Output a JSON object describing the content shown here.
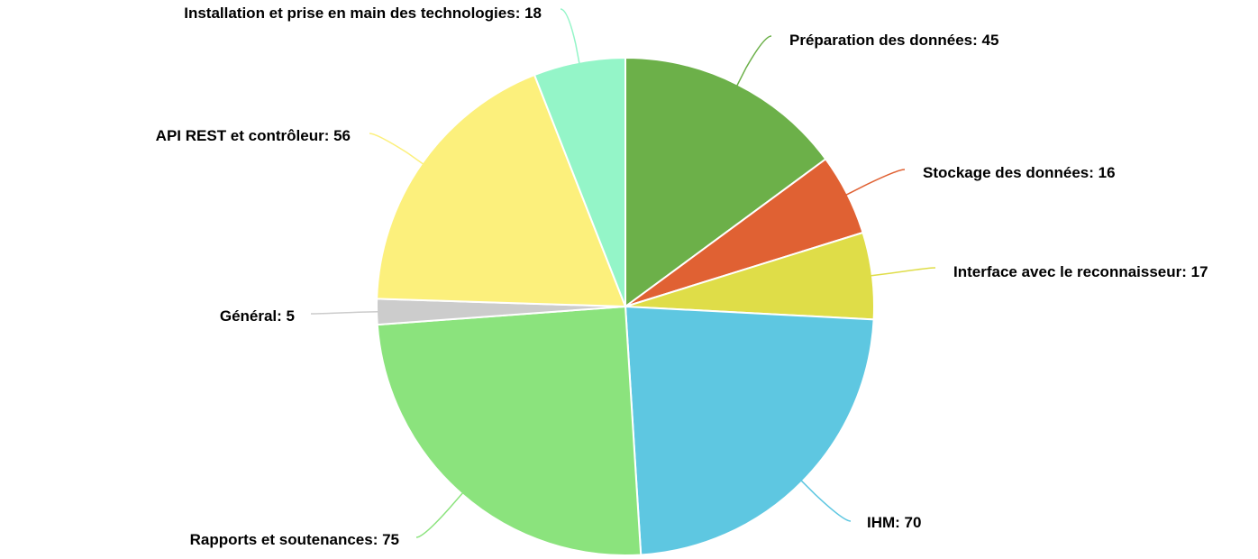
{
  "chart_data": {
    "type": "pie",
    "title": "",
    "slices": [
      {
        "label": "Préparation des données",
        "value": 45,
        "color": "#6cb049"
      },
      {
        "label": "Stockage des données",
        "value": 16,
        "color": "#e06133"
      },
      {
        "label": "Interface avec le reconnaisseur",
        "value": 17,
        "color": "#dfdd48"
      },
      {
        "label": "IHM",
        "value": 70,
        "color": "#5ec7e1"
      },
      {
        "label": "Rapports et soutenances",
        "value": 75,
        "color": "#8be37d"
      },
      {
        "label": "Général",
        "value": 5,
        "color": "#cccccc"
      },
      {
        "label": "API REST et contrôleur",
        "value": 56,
        "color": "#fcf07c"
      },
      {
        "label": "Installation et prise en main des technologies",
        "value": 18,
        "color": "#94f5c8"
      }
    ],
    "start": "top",
    "direction": "clockwise",
    "data_labels": "outside"
  }
}
